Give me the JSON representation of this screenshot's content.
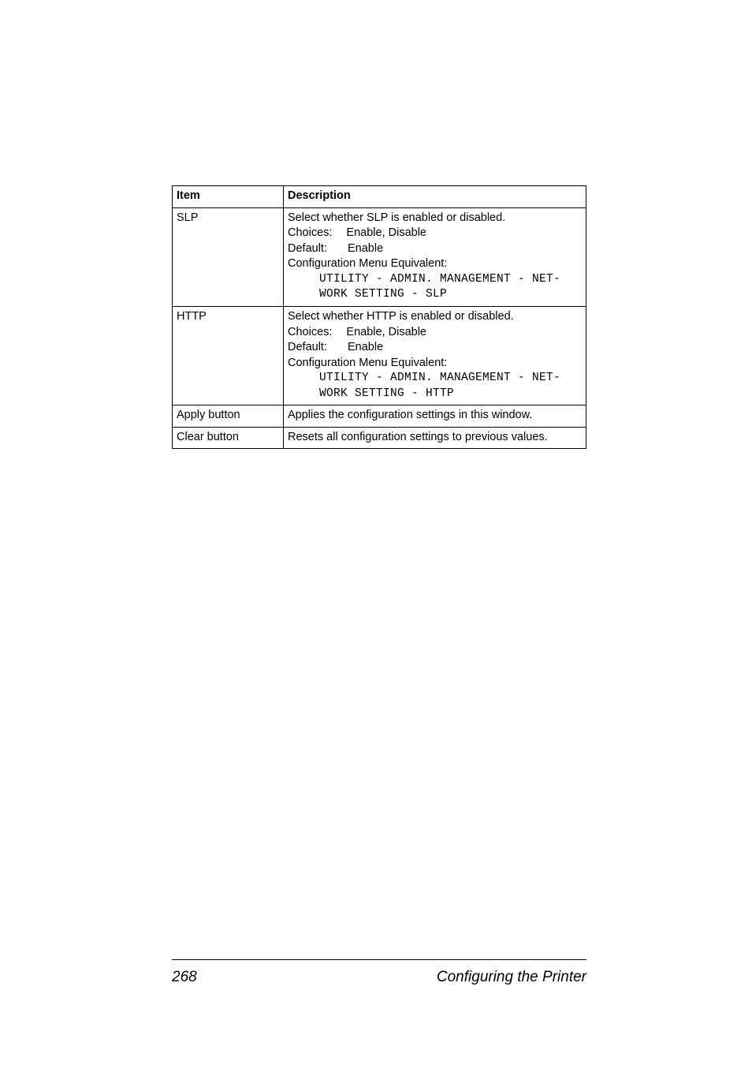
{
  "table": {
    "header": {
      "item": "Item",
      "description": "Description"
    },
    "rows": [
      {
        "item": "SLP",
        "select_text": "Select whether SLP is enabled or disabled.",
        "choices_label": "Choices:",
        "choices_value": "Enable, Disable",
        "default_label": "Default:",
        "default_value": "Enable",
        "config_label": "Configuration Menu Equivalent:",
        "config_line1": "UTILITY - ADMIN. MANAGEMENT - NET-",
        "config_line2": "WORK SETTING - SLP"
      },
      {
        "item": "HTTP",
        "select_text": "Select whether HTTP is enabled or disabled.",
        "choices_label": "Choices:",
        "choices_value": "Enable, Disable",
        "default_label": "Default:",
        "default_value": "Enable",
        "config_label": "Configuration Menu Equivalent:",
        "config_line1": "UTILITY - ADMIN. MANAGEMENT - NET-",
        "config_line2": "WORK SETTING - HTTP"
      },
      {
        "item": "Apply button",
        "desc": "Applies the configuration settings in this window."
      },
      {
        "item": "Clear button",
        "desc": "Resets all configuration settings to previous values."
      }
    ]
  },
  "footer": {
    "page_number": "268",
    "title": "Configuring the Printer"
  }
}
